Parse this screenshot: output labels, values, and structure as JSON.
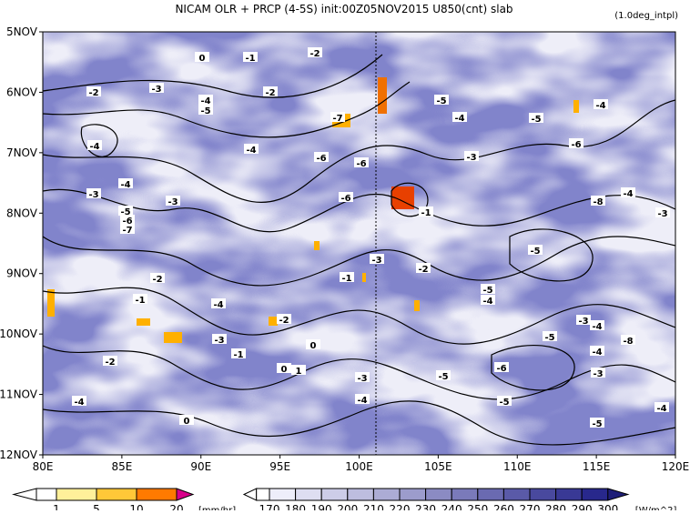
{
  "title": "NICAM  OLR + PRCP (4-5S) init:00Z05NOV2015  U850(cnt) slab",
  "note": "(1.0deg_intpl)",
  "x_axis": {
    "ticks": [
      "80E",
      "85E",
      "90E",
      "95E",
      "100E",
      "105E",
      "110E",
      "115E",
      "120E"
    ]
  },
  "y_axis": {
    "ticks": [
      "5NOV",
      "6NOV",
      "7NOV",
      "8NOV",
      "9NOV",
      "10NOV",
      "11NOV",
      "12NOV"
    ]
  },
  "prcp_colorbar": {
    "labels": [
      "1",
      "5",
      "10",
      "20"
    ],
    "unit": "[mm/hr]"
  },
  "olr_colorbar": {
    "labels": [
      "170",
      "180",
      "190",
      "200",
      "210",
      "220",
      "230",
      "240",
      "250",
      "260",
      "270",
      "280",
      "290",
      "300"
    ],
    "unit": "[W/m^2]"
  },
  "contour_labels": [
    "0",
    "-1",
    "-2",
    "-2",
    "-3",
    "-2",
    "-4",
    "-5",
    "-7",
    "-4",
    "-4",
    "-6",
    "-6",
    "-3",
    "-3",
    "-4",
    "-3",
    "-5",
    "-6",
    "-7",
    "-6",
    "-1",
    "-8",
    "-3",
    "-3",
    "-2",
    "-5",
    "-2",
    "-1",
    "-4",
    "-1",
    "-5",
    "-4",
    "-2",
    "-3",
    "-1",
    "0",
    "0",
    "1",
    "-3",
    "-4",
    "-5",
    "-6",
    "-5",
    "-3",
    "-4",
    "-8",
    "-4",
    "-3",
    "-5",
    "-5",
    "-4",
    "-4",
    "-2",
    "0",
    "-5",
    "-4",
    "-6",
    "-4",
    "-5",
    "-4"
  ]
}
